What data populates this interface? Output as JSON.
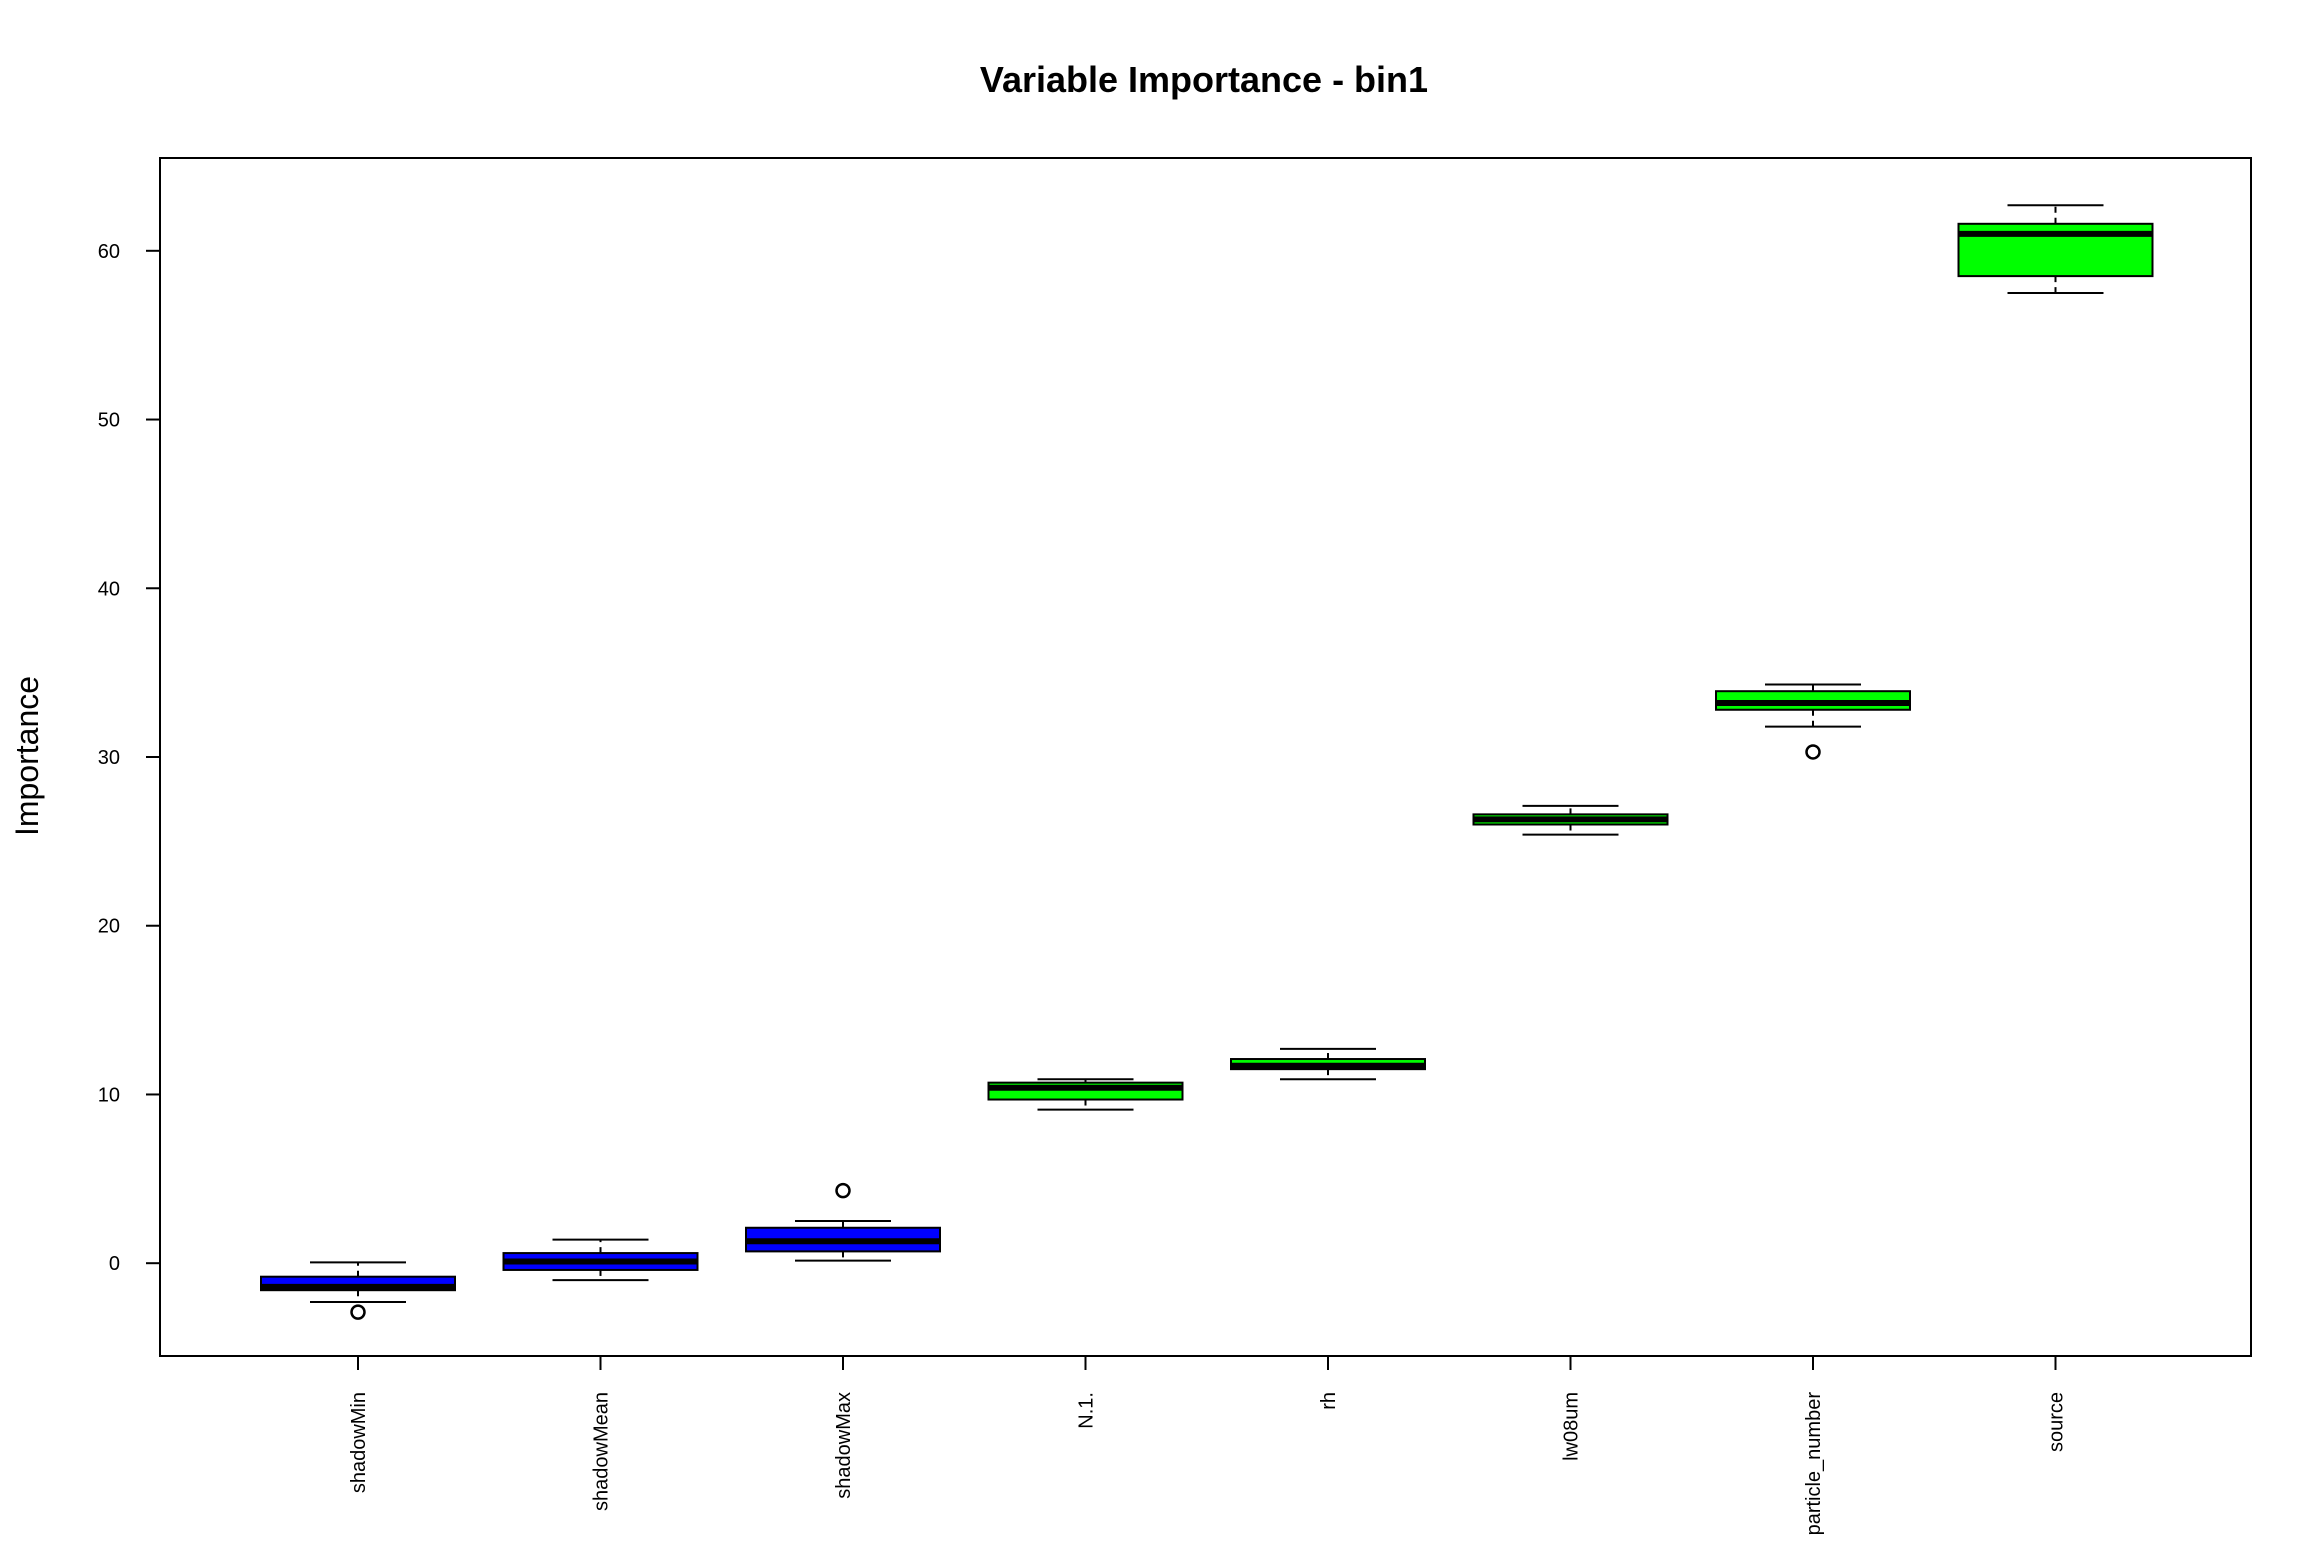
{
  "chart_data": {
    "type": "box",
    "title": "Variable Importance -  bin1",
    "xlabel": "",
    "ylabel": "Importance",
    "ylim": [
      -5.5,
      65.5
    ],
    "yticks": [
      0,
      10,
      20,
      30,
      40,
      50,
      60
    ],
    "grid": false,
    "legend": "none",
    "colors": {
      "shadow": "#0000ff",
      "confirmed": "#00ff00",
      "outline": "#000000"
    },
    "categories": [
      "shadowMin",
      "shadowMean",
      "shadowMax",
      "N.1.",
      "rh",
      "lw08um",
      "particle_number",
      "source"
    ],
    "boxes": [
      {
        "label": "shadowMin",
        "group": "shadow",
        "min": -2.3,
        "q1": -1.6,
        "median": -1.4,
        "q3": -0.8,
        "max": 0.05,
        "outliers": [
          -2.9
        ]
      },
      {
        "label": "shadowMean",
        "group": "shadow",
        "min": -1.0,
        "q1": -0.4,
        "median": 0.1,
        "q3": 0.6,
        "max": 1.4,
        "outliers": []
      },
      {
        "label": "shadowMax",
        "group": "shadow",
        "min": 0.15,
        "q1": 0.7,
        "median": 1.3,
        "q3": 2.1,
        "max": 2.5,
        "outliers": [
          4.3
        ]
      },
      {
        "label": "N.1.",
        "group": "confirmed",
        "min": 9.1,
        "q1": 9.7,
        "median": 10.4,
        "q3": 10.7,
        "max": 10.9,
        "outliers": []
      },
      {
        "label": "rh",
        "group": "confirmed",
        "min": 10.9,
        "q1": 11.5,
        "median": 11.7,
        "q3": 12.1,
        "max": 12.7,
        "outliers": []
      },
      {
        "label": "lw08um",
        "group": "confirmed",
        "min": 25.4,
        "q1": 26.0,
        "median": 26.3,
        "q3": 26.6,
        "max": 27.1,
        "outliers": []
      },
      {
        "label": "particle_number",
        "group": "confirmed",
        "min": 31.8,
        "q1": 32.8,
        "median": 33.2,
        "q3": 33.9,
        "max": 34.3,
        "outliers": [
          30.3
        ]
      },
      {
        "label": "source",
        "group": "confirmed",
        "min": 57.5,
        "q1": 58.5,
        "median": 61.0,
        "q3": 61.6,
        "max": 62.7,
        "outliers": []
      }
    ]
  }
}
